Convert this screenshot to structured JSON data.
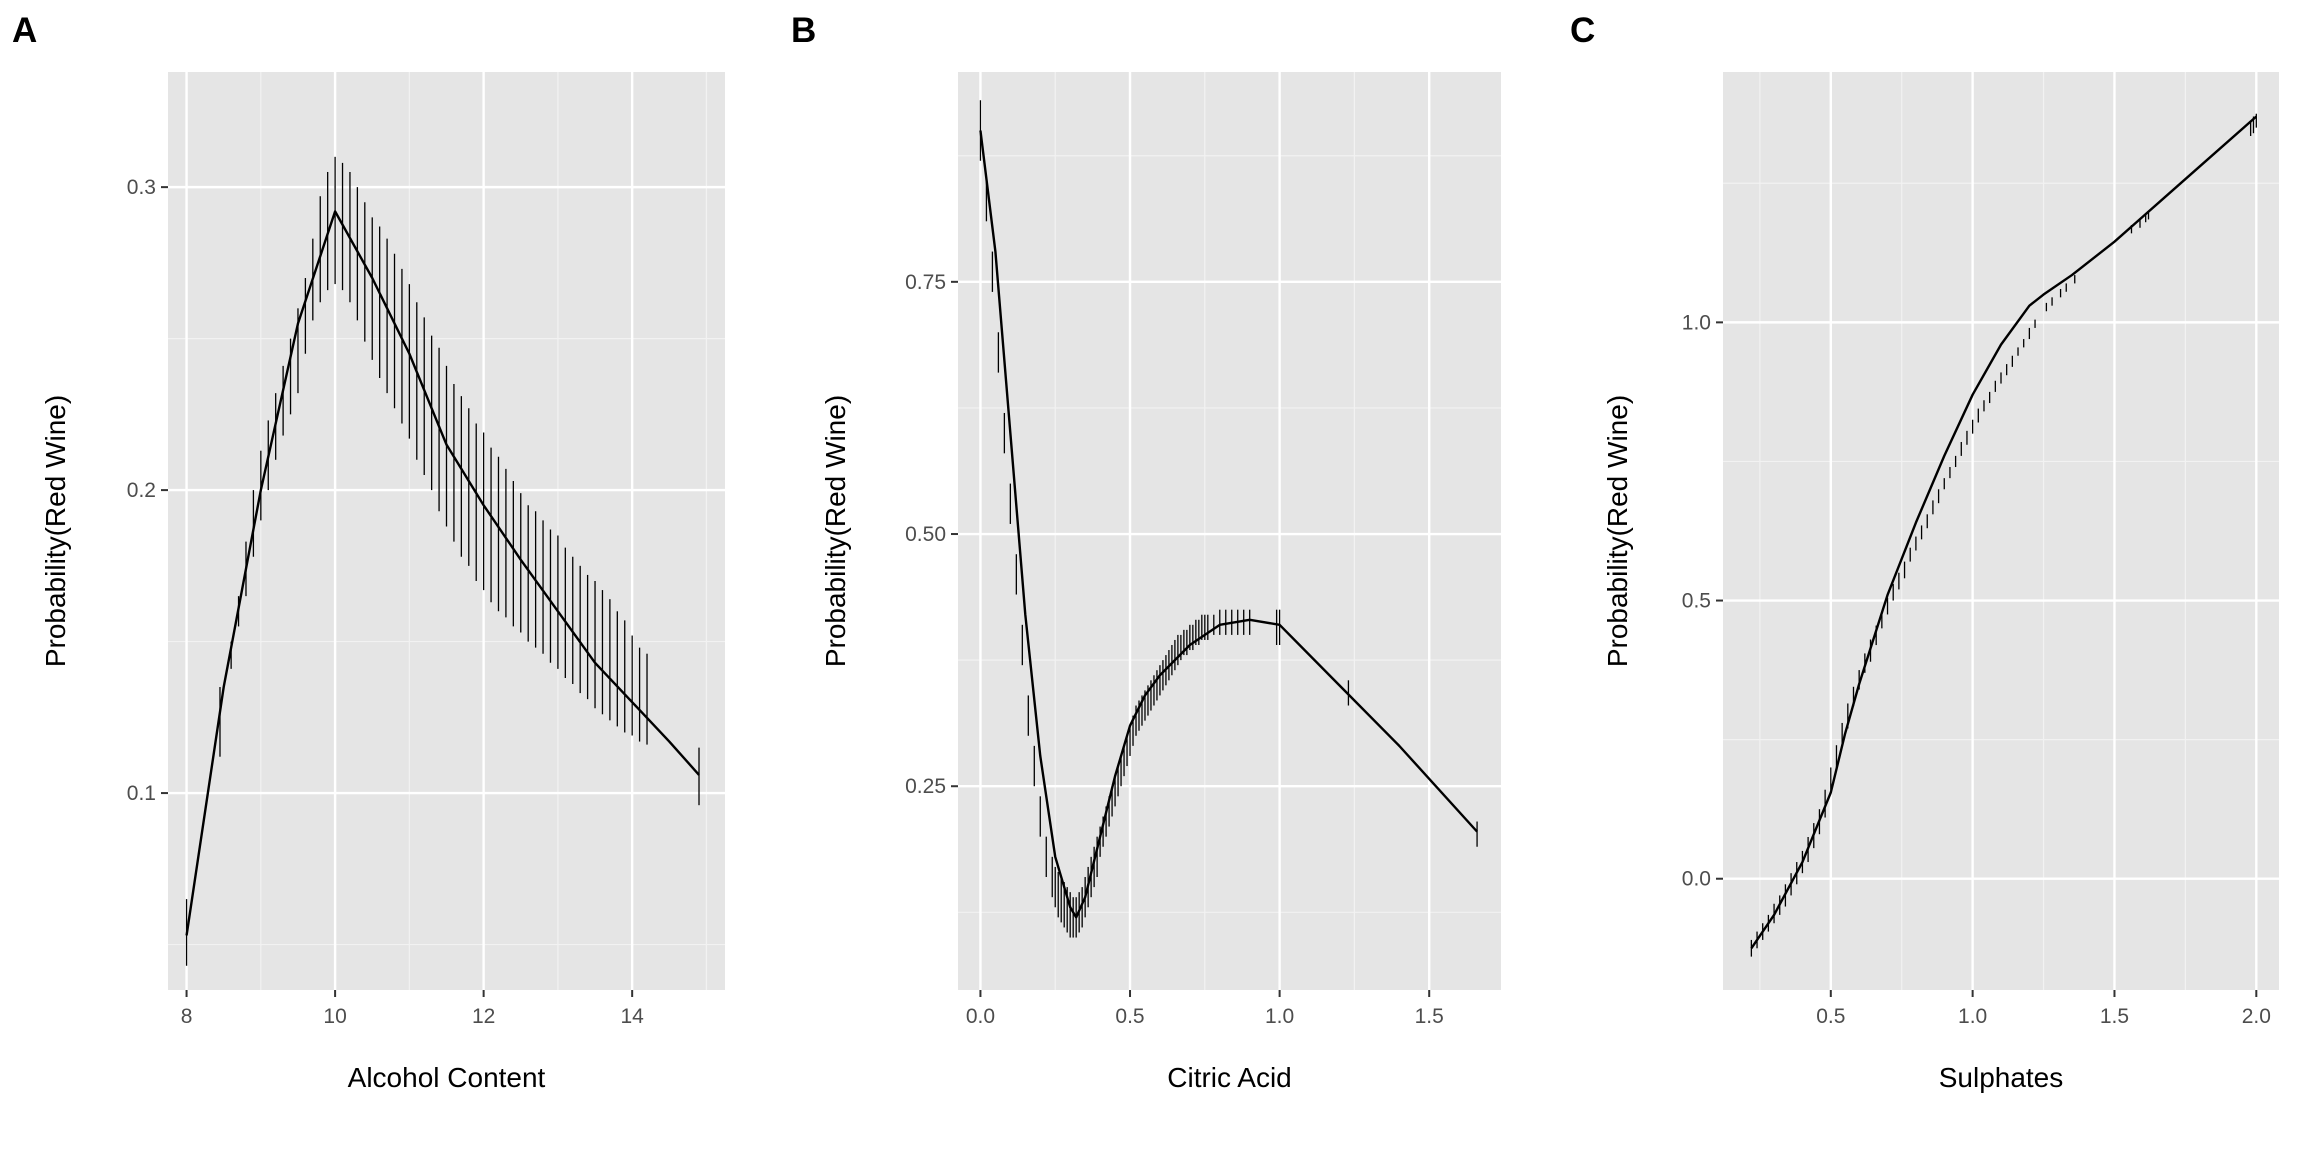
{
  "chart_data": [
    {
      "type": "line",
      "panel_label": "A",
      "xlabel": "Alcohol Content",
      "ylabel": "Probability(Red Wine)",
      "xlim": [
        7.75,
        15.25
      ],
      "ylim": [
        0.035,
        0.338
      ],
      "x_ticks": [
        8,
        10,
        12,
        14
      ],
      "x_tick_labels": [
        "8",
        "10",
        "12",
        "14"
      ],
      "y_ticks": [
        0.1,
        0.2,
        0.3
      ],
      "y_tick_labels": [
        "0.1",
        "0.2",
        "0.3"
      ],
      "grid": true,
      "series": [
        {
          "x": [
            8.0,
            8.5,
            9.0,
            9.5,
            10.0,
            10.5,
            11.0,
            11.5,
            12.0,
            12.5,
            13.0,
            13.5,
            14.0,
            14.5,
            14.9
          ],
          "values": [
            0.053,
            0.135,
            0.2,
            0.255,
            0.292,
            0.27,
            0.245,
            0.215,
            0.195,
            0.177,
            0.16,
            0.143,
            0.13,
            0.117,
            0.106
          ]
        }
      ],
      "error_bars": {
        "x": [
          8.0,
          8.45,
          8.6,
          8.7,
          8.8,
          8.9,
          9.0,
          9.1,
          9.2,
          9.3,
          9.4,
          9.5,
          9.6,
          9.7,
          9.8,
          9.9,
          10.0,
          10.1,
          10.2,
          10.3,
          10.4,
          10.5,
          10.6,
          10.7,
          10.8,
          10.9,
          11.0,
          11.1,
          11.2,
          11.3,
          11.4,
          11.5,
          11.6,
          11.7,
          11.8,
          11.9,
          12.0,
          12.1,
          12.2,
          12.3,
          12.4,
          12.5,
          12.6,
          12.7,
          12.8,
          12.9,
          13.0,
          13.1,
          13.2,
          13.3,
          13.4,
          13.5,
          13.6,
          13.7,
          13.8,
          13.9,
          14.0,
          14.1,
          14.2,
          14.9
        ],
        "low": [
          0.043,
          0.112,
          0.141,
          0.155,
          0.165,
          0.178,
          0.19,
          0.2,
          0.21,
          0.218,
          0.225,
          0.232,
          0.245,
          0.256,
          0.262,
          0.266,
          0.268,
          0.266,
          0.262,
          0.256,
          0.249,
          0.243,
          0.237,
          0.232,
          0.227,
          0.222,
          0.217,
          0.21,
          0.205,
          0.2,
          0.193,
          0.188,
          0.183,
          0.178,
          0.175,
          0.17,
          0.167,
          0.163,
          0.16,
          0.158,
          0.155,
          0.153,
          0.15,
          0.148,
          0.146,
          0.143,
          0.141,
          0.138,
          0.136,
          0.133,
          0.131,
          0.128,
          0.126,
          0.124,
          0.122,
          0.12,
          0.119,
          0.117,
          0.116,
          0.096
        ],
        "high": [
          0.065,
          0.135,
          0.15,
          0.165,
          0.183,
          0.2,
          0.213,
          0.223,
          0.232,
          0.241,
          0.25,
          0.26,
          0.27,
          0.283,
          0.297,
          0.305,
          0.31,
          0.308,
          0.305,
          0.3,
          0.295,
          0.29,
          0.287,
          0.283,
          0.278,
          0.273,
          0.268,
          0.262,
          0.257,
          0.251,
          0.247,
          0.241,
          0.235,
          0.231,
          0.227,
          0.222,
          0.219,
          0.214,
          0.211,
          0.207,
          0.203,
          0.199,
          0.195,
          0.193,
          0.19,
          0.187,
          0.185,
          0.181,
          0.178,
          0.175,
          0.172,
          0.17,
          0.167,
          0.164,
          0.16,
          0.157,
          0.152,
          0.148,
          0.146,
          0.115
        ]
      }
    },
    {
      "type": "line",
      "panel_label": "B",
      "xlabel": "Citric Acid",
      "ylabel": "Probability(Red Wine)",
      "xlim": [
        -0.075,
        1.74
      ],
      "ylim": [
        0.048,
        0.958
      ],
      "x_ticks": [
        0.0,
        0.5,
        1.0,
        1.5
      ],
      "x_tick_labels": [
        "0.0",
        "0.5",
        "1.0",
        "1.5"
      ],
      "y_ticks": [
        0.25,
        0.5,
        0.75
      ],
      "y_tick_labels": [
        "0.25",
        "0.50",
        "0.75"
      ],
      "grid": true,
      "series": [
        {
          "x": [
            0.0,
            0.05,
            0.1,
            0.15,
            0.2,
            0.25,
            0.3,
            0.32,
            0.35,
            0.4,
            0.45,
            0.5,
            0.55,
            0.6,
            0.7,
            0.8,
            0.9,
            1.0,
            1.2,
            1.4,
            1.66
          ],
          "values": [
            0.9,
            0.78,
            0.6,
            0.42,
            0.28,
            0.18,
            0.13,
            0.12,
            0.14,
            0.2,
            0.26,
            0.31,
            0.34,
            0.36,
            0.39,
            0.41,
            0.415,
            0.41,
            0.35,
            0.29,
            0.205
          ]
        }
      ],
      "error_bars": {
        "x": [
          0.0,
          0.02,
          0.04,
          0.06,
          0.08,
          0.1,
          0.12,
          0.14,
          0.16,
          0.18,
          0.2,
          0.22,
          0.24,
          0.25,
          0.26,
          0.27,
          0.28,
          0.29,
          0.3,
          0.31,
          0.32,
          0.33,
          0.34,
          0.35,
          0.36,
          0.37,
          0.38,
          0.39,
          0.4,
          0.41,
          0.42,
          0.43,
          0.44,
          0.45,
          0.46,
          0.47,
          0.48,
          0.49,
          0.5,
          0.51,
          0.52,
          0.53,
          0.54,
          0.55,
          0.56,
          0.57,
          0.58,
          0.59,
          0.6,
          0.61,
          0.62,
          0.63,
          0.64,
          0.65,
          0.66,
          0.67,
          0.68,
          0.69,
          0.7,
          0.71,
          0.72,
          0.73,
          0.74,
          0.75,
          0.76,
          0.78,
          0.8,
          0.82,
          0.84,
          0.86,
          0.88,
          0.9,
          0.99,
          1.0,
          1.23,
          1.66
        ],
        "low": [
          0.87,
          0.81,
          0.74,
          0.66,
          0.58,
          0.51,
          0.44,
          0.37,
          0.3,
          0.25,
          0.2,
          0.16,
          0.14,
          0.13,
          0.12,
          0.115,
          0.11,
          0.105,
          0.1,
          0.1,
          0.1,
          0.105,
          0.11,
          0.12,
          0.13,
          0.14,
          0.15,
          0.16,
          0.18,
          0.19,
          0.2,
          0.21,
          0.22,
          0.23,
          0.24,
          0.25,
          0.26,
          0.27,
          0.28,
          0.29,
          0.3,
          0.305,
          0.31,
          0.315,
          0.32,
          0.325,
          0.33,
          0.335,
          0.34,
          0.345,
          0.35,
          0.355,
          0.36,
          0.365,
          0.37,
          0.375,
          0.38,
          0.38,
          0.385,
          0.385,
          0.39,
          0.39,
          0.395,
          0.395,
          0.395,
          0.4,
          0.4,
          0.4,
          0.4,
          0.4,
          0.4,
          0.4,
          0.39,
          0.39,
          0.33,
          0.19
        ],
        "high": [
          0.93,
          0.85,
          0.78,
          0.7,
          0.62,
          0.55,
          0.48,
          0.41,
          0.34,
          0.29,
          0.24,
          0.2,
          0.18,
          0.17,
          0.165,
          0.16,
          0.155,
          0.15,
          0.145,
          0.14,
          0.14,
          0.145,
          0.15,
          0.16,
          0.17,
          0.18,
          0.19,
          0.2,
          0.21,
          0.22,
          0.23,
          0.24,
          0.25,
          0.26,
          0.27,
          0.28,
          0.29,
          0.3,
          0.31,
          0.32,
          0.33,
          0.335,
          0.34,
          0.345,
          0.35,
          0.355,
          0.36,
          0.365,
          0.37,
          0.375,
          0.38,
          0.385,
          0.39,
          0.395,
          0.4,
          0.4,
          0.405,
          0.405,
          0.41,
          0.41,
          0.415,
          0.415,
          0.42,
          0.42,
          0.42,
          0.42,
          0.425,
          0.425,
          0.425,
          0.425,
          0.425,
          0.425,
          0.425,
          0.425,
          0.355,
          0.215
        ]
      }
    },
    {
      "type": "line",
      "panel_label": "C",
      "xlabel": "Sulphates",
      "ylabel": "Probability(Red Wine)",
      "xlim": [
        0.12,
        2.08
      ],
      "ylim": [
        -0.2,
        1.45
      ],
      "x_ticks": [
        0.5,
        1.0,
        1.5,
        2.0
      ],
      "x_tick_labels": [
        "0.5",
        "1.0",
        "1.5",
        "2.0"
      ],
      "y_ticks": [
        0.0,
        0.5,
        1.0
      ],
      "y_tick_labels": [
        "0.0",
        "0.5",
        "1.0"
      ],
      "grid": true,
      "series": [
        {
          "x": [
            0.22,
            0.3,
            0.4,
            0.5,
            0.55,
            0.6,
            0.7,
            0.8,
            0.9,
            1.0,
            1.1,
            1.2,
            1.25,
            1.35,
            1.5,
            1.6,
            1.8,
            2.0
          ],
          "values": [
            -0.125,
            -0.065,
            0.03,
            0.155,
            0.26,
            0.35,
            0.51,
            0.64,
            0.76,
            0.87,
            0.96,
            1.03,
            1.05,
            1.085,
            1.145,
            1.19,
            1.28,
            1.37
          ]
        }
      ],
      "error_bars": {
        "x": [
          0.22,
          0.24,
          0.26,
          0.28,
          0.3,
          0.32,
          0.34,
          0.36,
          0.38,
          0.4,
          0.42,
          0.44,
          0.46,
          0.48,
          0.5,
          0.52,
          0.54,
          0.56,
          0.58,
          0.6,
          0.62,
          0.64,
          0.66,
          0.68,
          0.7,
          0.72,
          0.74,
          0.76,
          0.78,
          0.8,
          0.82,
          0.84,
          0.86,
          0.88,
          0.9,
          0.92,
          0.94,
          0.96,
          0.98,
          1.0,
          1.02,
          1.04,
          1.06,
          1.08,
          1.1,
          1.12,
          1.14,
          1.16,
          1.18,
          1.2,
          1.22,
          1.26,
          1.28,
          1.31,
          1.33,
          1.36,
          1.56,
          1.59,
          1.61,
          1.62,
          1.98,
          1.99,
          2.0
        ],
        "low": [
          -0.14,
          -0.125,
          -0.11,
          -0.095,
          -0.08,
          -0.065,
          -0.05,
          -0.03,
          -0.01,
          0.01,
          0.03,
          0.055,
          0.08,
          0.11,
          0.16,
          0.2,
          0.24,
          0.27,
          0.31,
          0.34,
          0.37,
          0.39,
          0.42,
          0.45,
          0.475,
          0.5,
          0.52,
          0.54,
          0.57,
          0.59,
          0.61,
          0.63,
          0.655,
          0.675,
          0.7,
          0.72,
          0.74,
          0.76,
          0.78,
          0.8,
          0.82,
          0.84,
          0.855,
          0.875,
          0.89,
          0.905,
          0.92,
          0.94,
          0.955,
          0.97,
          0.99,
          1.02,
          1.03,
          1.045,
          1.055,
          1.07,
          1.16,
          1.17,
          1.18,
          1.185,
          1.335,
          1.34,
          1.35
        ],
        "high": [
          -0.11,
          -0.095,
          -0.08,
          -0.065,
          -0.045,
          -0.03,
          -0.01,
          0.01,
          0.03,
          0.05,
          0.075,
          0.1,
          0.125,
          0.16,
          0.2,
          0.24,
          0.28,
          0.315,
          0.345,
          0.375,
          0.405,
          0.43,
          0.455,
          0.48,
          0.505,
          0.53,
          0.55,
          0.57,
          0.595,
          0.615,
          0.635,
          0.655,
          0.68,
          0.7,
          0.72,
          0.74,
          0.76,
          0.785,
          0.805,
          0.825,
          0.845,
          0.86,
          0.875,
          0.895,
          0.91,
          0.925,
          0.94,
          0.955,
          0.97,
          0.99,
          1.005,
          1.035,
          1.045,
          1.06,
          1.07,
          1.085,
          1.175,
          1.185,
          1.195,
          1.2,
          1.36,
          1.37,
          1.375
        ]
      }
    }
  ]
}
